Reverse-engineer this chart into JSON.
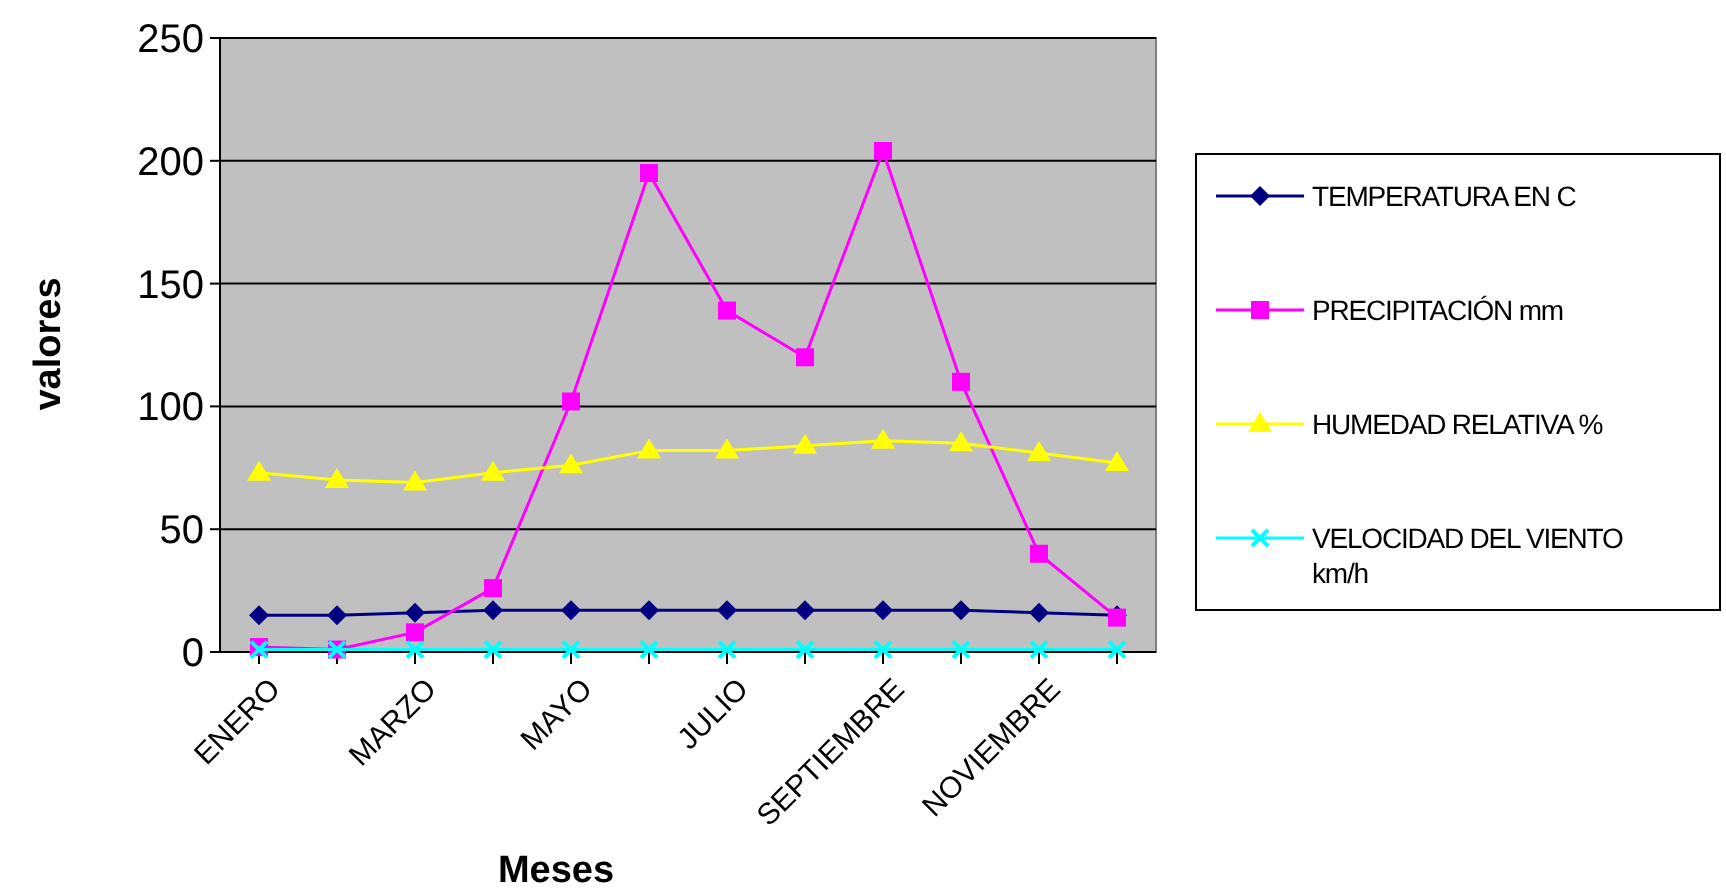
{
  "chart_data": {
    "type": "line",
    "xlabel": "Meses",
    "ylabel": "valores",
    "categories": [
      "ENERO",
      null,
      "MARZO",
      null,
      "MAYO",
      null,
      "JULIO",
      null,
      "SEPTIEMBRE",
      null,
      "NOVIEMBRE",
      null
    ],
    "ylim": [
      0,
      250
    ],
    "yticks": [
      0,
      50,
      100,
      150,
      200,
      250
    ],
    "grid": "y",
    "legend": "right",
    "series": [
      {
        "name": "TEMPERATURA EN C",
        "color": "#000080",
        "marker": "diamond",
        "values": [
          15,
          15,
          16,
          17,
          17,
          17,
          17,
          17,
          17,
          17,
          16,
          15
        ]
      },
      {
        "name": "PRECIPITACIÓN mm",
        "color": "#ff00ff",
        "marker": "square",
        "values": [
          2,
          1,
          8,
          26,
          102,
          195,
          139,
          120,
          204,
          110,
          40,
          14
        ]
      },
      {
        "name": "HUMEDAD RELATIVA %",
        "color": "#ffff00",
        "marker": "triangle",
        "values": [
          73,
          70,
          69,
          73,
          76,
          82,
          82,
          84,
          86,
          85,
          81,
          77
        ]
      },
      {
        "name": "VELOCIDAD DEL VIENTO km/h",
        "color": "#00ffff",
        "marker": "cross",
        "values": [
          1,
          1,
          1,
          1,
          1,
          1,
          1,
          1,
          1,
          1,
          1,
          1
        ]
      }
    ]
  }
}
